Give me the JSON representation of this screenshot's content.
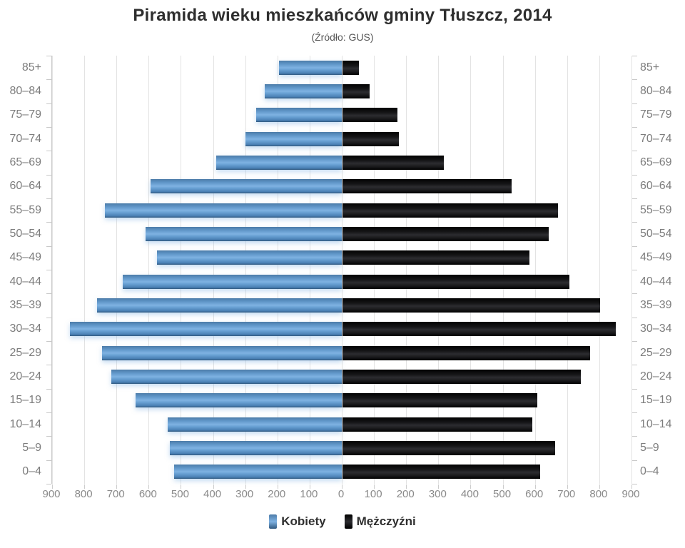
{
  "title": "Piramida wieku mieszkańców gminy Tłuszcz, 2014",
  "subtitle": "(Źródło: GUS)",
  "legend": [
    {
      "label": "Kobiety",
      "series": "female"
    },
    {
      "label": "Mężczyźni",
      "series": "male"
    }
  ],
  "colors": {
    "female_mid": "#5e94c6",
    "female_highlight": "#7fb2e2",
    "female_dark": "#31597f",
    "male": "#141416",
    "grid": "#e3e3e3",
    "axis": "#c9c9c9",
    "category_label": "#7d7d7d",
    "tick_label": "#8a8a8a",
    "title_text": "#2e2e2e"
  },
  "chart_data": {
    "type": "bar",
    "subtype": "population-pyramid",
    "orientation": "horizontal",
    "grid": true,
    "legend_position": "bottom",
    "categories": [
      "85+",
      "80–84",
      "75–79",
      "70–74",
      "65–69",
      "60–64",
      "55–59",
      "50–54",
      "45–49",
      "40–44",
      "35–39",
      "30–34",
      "25–29",
      "20–24",
      "15–19",
      "10–14",
      "5–9",
      "0–4"
    ],
    "series": [
      {
        "name": "Kobiety",
        "side": "left",
        "values": [
          195,
          240,
          265,
          300,
          390,
          595,
          735,
          610,
          575,
          680,
          760,
          845,
          745,
          715,
          640,
          540,
          535,
          520
        ]
      },
      {
        "name": "Mężczyźni",
        "side": "right",
        "values": [
          50,
          85,
          170,
          175,
          315,
          525,
          670,
          640,
          580,
          705,
          800,
          850,
          770,
          740,
          605,
          590,
          660,
          615
        ]
      }
    ],
    "xlim": [
      0,
      900
    ],
    "x_tick_interval": 100,
    "axis_ticks": [
      "900",
      "800",
      "700",
      "600",
      "500",
      "400",
      "300",
      "200",
      "100",
      "0",
      "100",
      "200",
      "300",
      "400",
      "500",
      "600",
      "700",
      "800",
      "900"
    ]
  }
}
